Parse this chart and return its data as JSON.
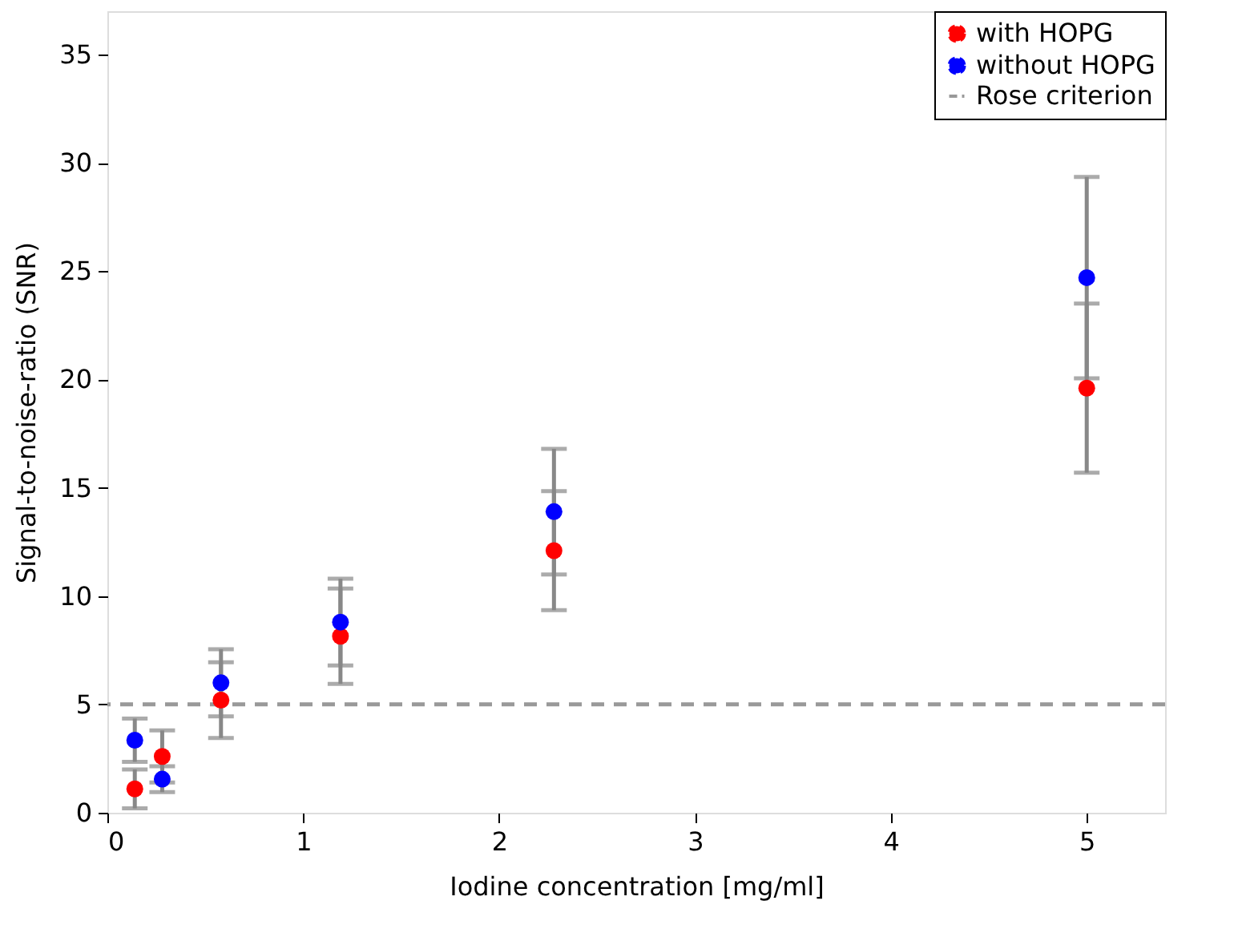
{
  "chart_data": {
    "type": "scatter",
    "xlabel": "Iodine concentration [mg/ml]",
    "ylabel": "Signal-to-noise-ratio (SNR)",
    "x": [
      0.14,
      0.28,
      0.58,
      1.19,
      2.28,
      5.0
    ],
    "series": [
      {
        "name": "with HOPG",
        "color": "#ff0000",
        "values": [
          1.1,
          2.6,
          5.2,
          8.15,
          12.1,
          19.6
        ],
        "errors": [
          0.9,
          1.2,
          1.75,
          2.2,
          2.75,
          3.9
        ]
      },
      {
        "name": "without HOPG",
        "color": "#0000ff",
        "values": [
          3.35,
          1.55,
          6.0,
          8.8,
          13.9,
          24.7
        ],
        "errors": [
          1.0,
          0.6,
          1.55,
          2.0,
          2.9,
          4.65
        ]
      }
    ],
    "ref_lines": [
      {
        "axis": "y",
        "value": 5,
        "label": "Rose criterion",
        "color": "#999999",
        "line_style": "dashed"
      }
    ],
    "xlim": [
      0,
      5.4
    ],
    "xticks": [
      0,
      1,
      2,
      3,
      4,
      5
    ],
    "ylim": [
      0,
      37
    ],
    "yticks": [
      0,
      5,
      10,
      15,
      20,
      25,
      30,
      35
    ],
    "marker": "circle",
    "grid": false,
    "legend": "top right"
  }
}
